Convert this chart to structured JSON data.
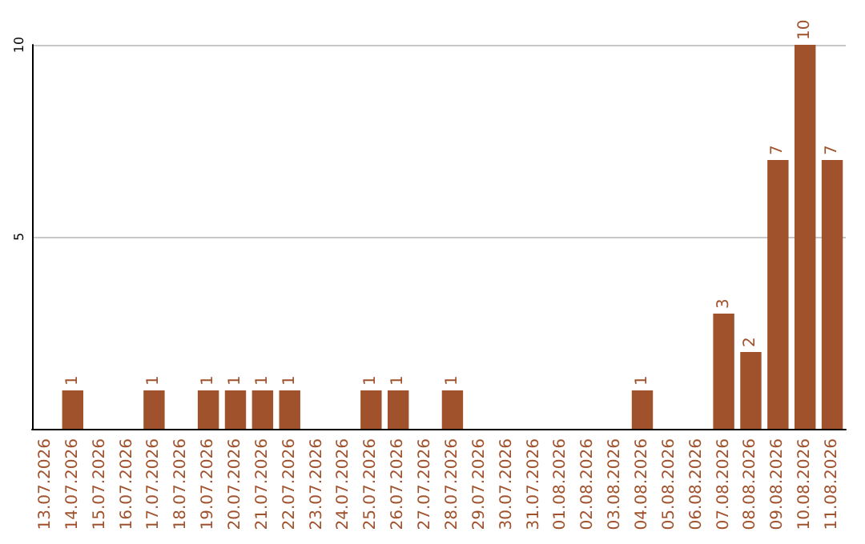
{
  "chart_data": {
    "type": "bar",
    "categories": [
      "13.07.2026",
      "14.07.2026",
      "15.07.2026",
      "16.07.2026",
      "17.07.2026",
      "18.07.2026",
      "19.07.2026",
      "20.07.2026",
      "21.07.2026",
      "22.07.2026",
      "23.07.2026",
      "24.07.2026",
      "25.07.2026",
      "26.07.2026",
      "27.07.2026",
      "28.07.2026",
      "29.07.2026",
      "30.07.2026",
      "31.07.2026",
      "01.08.2026",
      "02.08.2026",
      "03.08.2026",
      "04.08.2026",
      "05.08.2026",
      "06.08.2026",
      "07.08.2026",
      "08.08.2026",
      "09.08.2026",
      "10.08.2026",
      "11.08.2026"
    ],
    "values": [
      0,
      1,
      0,
      0,
      1,
      0,
      1,
      1,
      1,
      1,
      0,
      0,
      1,
      1,
      0,
      1,
      0,
      0,
      0,
      0,
      0,
      0,
      1,
      0,
      0,
      3,
      2,
      7,
      10,
      7
    ],
    "value_labels": [
      null,
      "1",
      null,
      null,
      "1",
      null,
      "1",
      "1",
      "1",
      "1",
      null,
      null,
      "1",
      "1",
      null,
      "1",
      null,
      null,
      null,
      null,
      null,
      null,
      "1",
      null,
      null,
      "3",
      "2",
      "7",
      "10",
      "7"
    ],
    "color": "#a0522d",
    "ylim": [
      0,
      10
    ],
    "yticks": [
      {
        "value": 0,
        "label": null
      },
      5,
      10
    ],
    "grid": "y"
  }
}
